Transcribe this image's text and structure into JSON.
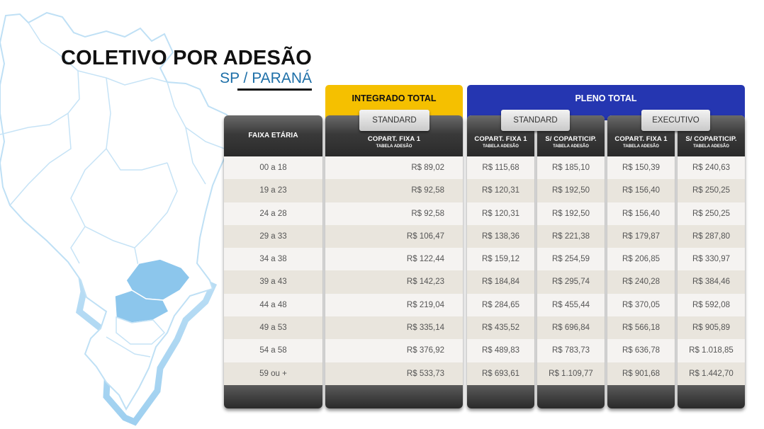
{
  "header": {
    "title": "COLETIVO POR ADESÃO",
    "subtitle": "SP / PARANÁ"
  },
  "plans": {
    "integrado": {
      "label": "INTEGRADO TOTAL",
      "tier": "STANDARD",
      "color": "#f5c000"
    },
    "pleno": {
      "label": "PLENO TOTAL",
      "tiers": [
        "STANDARD",
        "EXECUTIVO"
      ],
      "color": "#2536b1"
    }
  },
  "table": {
    "faixa_header": "FAIXA ETÁRIA",
    "columns": [
      {
        "header": "COPART. FIXA 1",
        "sub": "TABELA ADESÃO"
      },
      {
        "header": "COPART. FIXA 1",
        "sub": "TABELA ADESÃO"
      },
      {
        "header": "S/ COPARTICIP.",
        "sub": "TABELA ADESÃO"
      },
      {
        "header": "COPART. FIXA 1",
        "sub": "TABELA ADESÃO"
      },
      {
        "header": "S/ COPARTICIP.",
        "sub": "TABELA ADESÃO"
      }
    ],
    "age_ranges": [
      "00 a 18",
      "19 a 23",
      "24 a 28",
      "29 a 33",
      "34 a 38",
      "39 a 43",
      "44 a 48",
      "49 a 53",
      "54 a 58",
      "59 ou +"
    ],
    "values": [
      [
        "R$ 89,02",
        "R$ 92,58",
        "R$ 92,58",
        "R$ 106,47",
        "R$ 122,44",
        "R$ 142,23",
        "R$ 219,04",
        "R$ 335,14",
        "R$ 376,92",
        "R$ 533,73"
      ],
      [
        "R$ 115,68",
        "R$ 120,31",
        "R$ 120,31",
        "R$ 138,36",
        "R$ 159,12",
        "R$ 184,84",
        "R$ 284,65",
        "R$ 435,52",
        "R$ 489,83",
        "R$ 693,61"
      ],
      [
        "R$ 185,10",
        "R$ 192,50",
        "R$ 192,50",
        "R$ 221,38",
        "R$ 254,59",
        "R$ 295,74",
        "R$ 455,44",
        "R$ 696,84",
        "R$ 783,73",
        "R$ 1.109,77"
      ],
      [
        "R$ 150,39",
        "R$ 156,40",
        "R$ 156,40",
        "R$ 179,87",
        "R$ 206,85",
        "R$ 240,28",
        "R$ 370,05",
        "R$ 566,18",
        "R$ 636,78",
        "R$ 901,68"
      ],
      [
        "R$ 240,63",
        "R$ 250,25",
        "R$ 250,25",
        "R$ 287,80",
        "R$ 330,97",
        "R$ 384,46",
        "R$ 592,08",
        "R$ 905,89",
        "R$ 1.018,85",
        "R$ 1.442,70"
      ]
    ]
  },
  "map": {
    "icon": "brazil-map-icon",
    "highlight_color": "#8cc6ec",
    "outline_color": "#bfe0f5"
  }
}
